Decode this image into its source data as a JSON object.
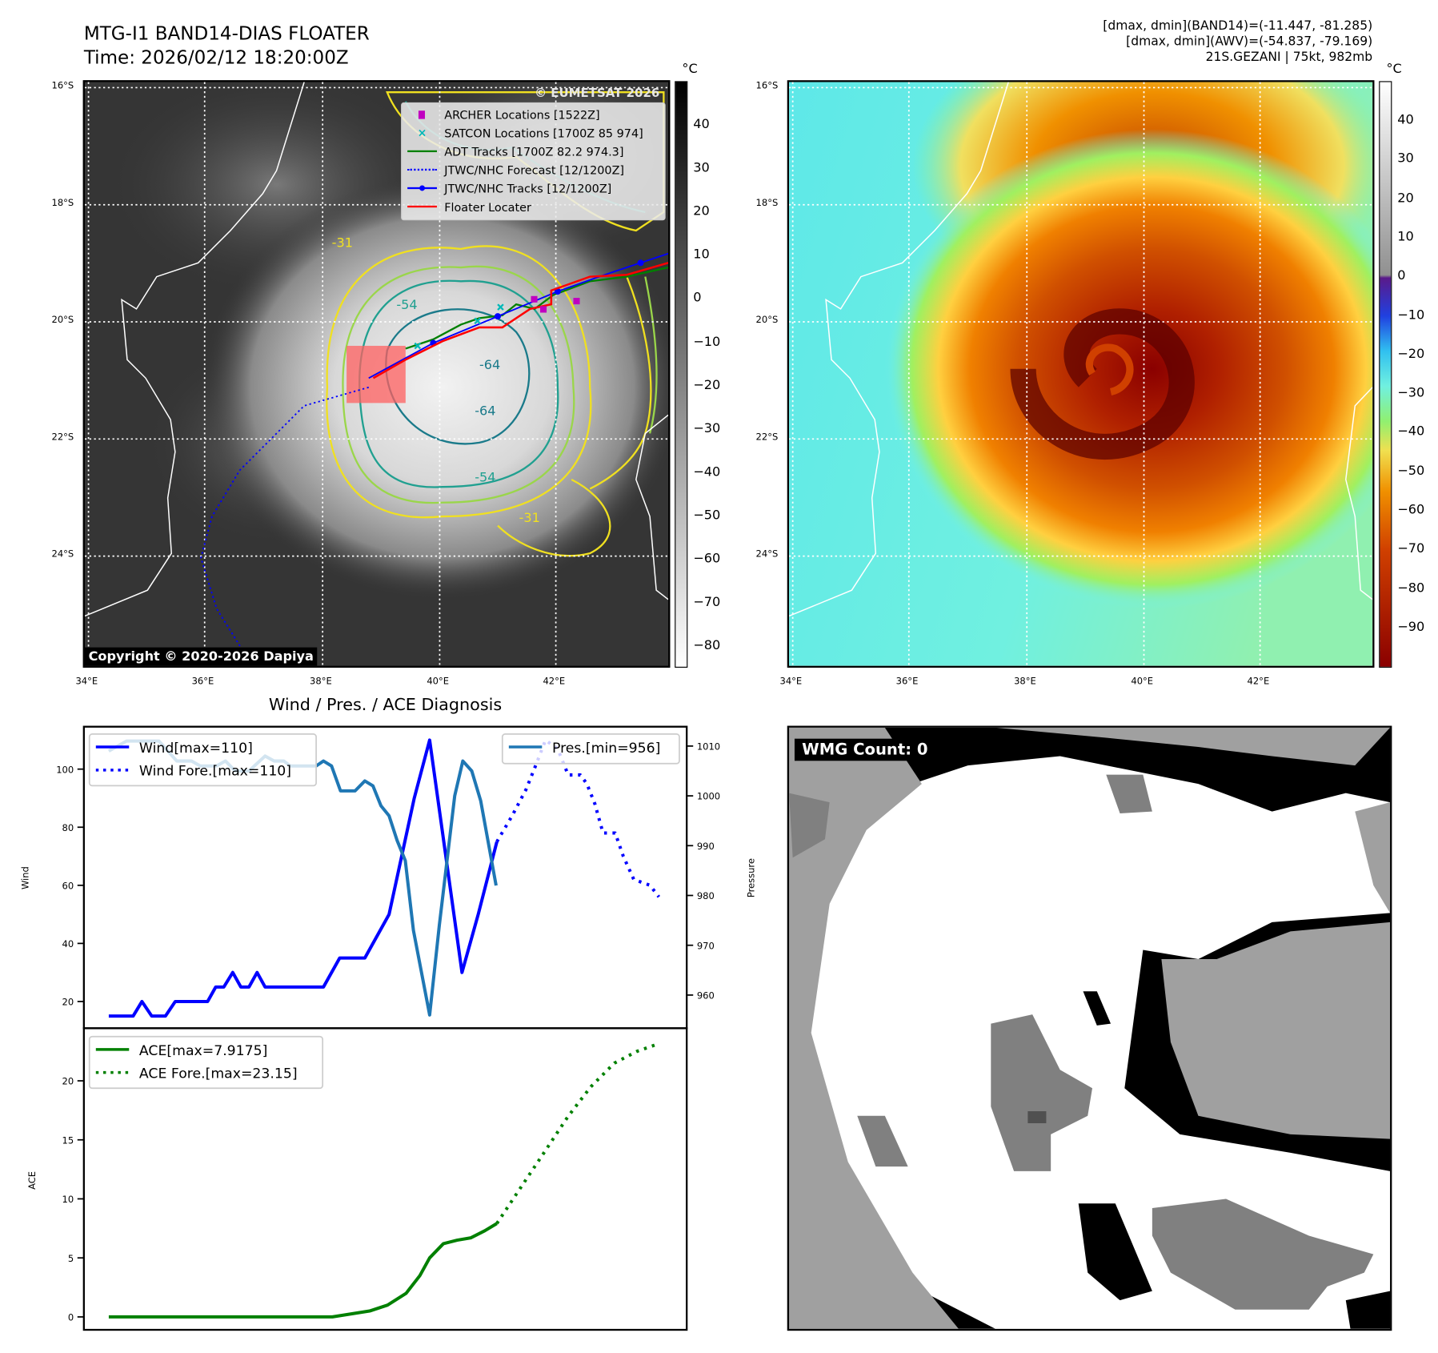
{
  "header": {
    "title": "MTG-I1 BAND14-DIAS FLOATER",
    "time": "Time: 2026/02/12 18:20:00Z",
    "stats_band14": "[dmax, dmin](BAND14)=(-11.447, -81.285)",
    "stats_awv": "[dmax, dmin](AWV)=(-54.837, -79.169)",
    "storm": "21S.GEZANI | 75kt, 982mb"
  },
  "map_left": {
    "lat_ticks": [
      "16°S",
      "18°S",
      "20°S",
      "22°S",
      "24°S"
    ],
    "lon_ticks": [
      "34°E",
      "36°E",
      "38°E",
      "40°E",
      "42°E"
    ],
    "watermark": "© EUMETSAT 2026",
    "copyright": "Copyright © 2020-2026 Dapiya",
    "contour_labels": [
      "-31",
      "-54",
      "-64",
      "-64",
      "-54",
      "-31"
    ],
    "legend": [
      {
        "label": "ARCHER Locations [1522Z]",
        "color": "#c000c0"
      },
      {
        "label": "SATCON Locations [1700Z 85 974]",
        "color": "#00b8b8"
      },
      {
        "label": "ADT Tracks [1700Z 82.2 974.3]",
        "color": "#008000"
      },
      {
        "label": "JTWC/NHC Forecast [12/1200Z]",
        "color": "#0000ff"
      },
      {
        "label": "JTWC/NHC Tracks [12/1200Z]",
        "color": "#0000ff"
      },
      {
        "label": "Floater Locater",
        "color": "#ff0000"
      }
    ],
    "colorbar_unit": "°C",
    "colorbar_ticks": [
      "40",
      "30",
      "20",
      "10",
      "0",
      "−10",
      "−20",
      "−30",
      "−40",
      "−50",
      "−60",
      "−70",
      "−80"
    ]
  },
  "map_right": {
    "lat_ticks": [
      "16°S",
      "18°S",
      "20°S",
      "22°S",
      "24°S"
    ],
    "lon_ticks": [
      "34°E",
      "36°E",
      "38°E",
      "40°E",
      "42°E"
    ],
    "colorbar_unit": "°C",
    "colorbar_ticks": [
      "40",
      "30",
      "20",
      "10",
      "0",
      "−10",
      "−20",
      "−30",
      "−40",
      "−50",
      "−60",
      "−70",
      "−80",
      "−90"
    ]
  },
  "wmg": {
    "label": "WMG Count: 0"
  },
  "chart_data": [
    {
      "type": "line",
      "title": "Wind / Pres. / ACE Diagnosis",
      "ylabel": "Wind",
      "ylabel_right": "Pressure",
      "ylim": [
        10,
        115
      ],
      "ylim_right": [
        953,
        1015
      ],
      "yticks": [
        "20",
        "40",
        "60",
        "80",
        "100"
      ],
      "yticks_right": [
        "960",
        "970",
        "980",
        "990",
        "1000",
        "1010"
      ],
      "series": [
        {
          "name": "Wind[max=110]",
          "color": "#0000ff",
          "style": "solid",
          "axis": "left",
          "x": [
            0,
            3,
            4.1,
            5.3,
            7,
            8.2,
            12.2,
            13.2,
            14.2,
            15.3,
            16.3,
            17.3,
            18.3,
            19.3,
            26.5,
            28.5,
            31.6,
            34.6,
            37.7,
            39.6,
            43.6,
            45.6,
            47.9
          ],
          "y": [
            15,
            15,
            20,
            15,
            15,
            20,
            20,
            25,
            25,
            30,
            25,
            25,
            30,
            25,
            25,
            35,
            35,
            50,
            90,
            110,
            30,
            50,
            75
          ]
        },
        {
          "name": "Wind Fore.[max=110]",
          "color": "#0000ff",
          "style": "dotted",
          "axis": "left",
          "x": [
            47.9,
            49.8,
            51.5,
            52.8,
            53.9,
            55.4,
            56.7,
            58.2,
            59,
            60,
            61,
            62.5,
            63.5,
            64.8,
            66.8,
            67.9
          ],
          "y": [
            75,
            84,
            93,
            102,
            110,
            107,
            98,
            98,
            95,
            88,
            78,
            78,
            70,
            62,
            60,
            56
          ]
        },
        {
          "name": "Pres.[min=956]",
          "color": "#1f77b4",
          "style": "solid",
          "axis": "right",
          "x": [
            0,
            2.2,
            6.2,
            8.4,
            10.2,
            11.3,
            13.3,
            14.4,
            15.6,
            17.3,
            19.3,
            20.4,
            21.6,
            22.4,
            25.6,
            26.5,
            27.5,
            28.6,
            30.4,
            31.6,
            32.6,
            33.6,
            34.6,
            35.6,
            36.6,
            37.6,
            39.6,
            40.8,
            42.7,
            43.7,
            44.8,
            45.9,
            47.8
          ],
          "y": [
            1009,
            1011,
            1011,
            1007,
            1007,
            1006,
            1006,
            1007,
            1005,
            1005,
            1008,
            1007,
            1007,
            1006,
            1006,
            1007,
            1006,
            1001,
            1001,
            1003,
            1002,
            998,
            996,
            991,
            987,
            973,
            956,
            974,
            1000,
            1007,
            1005,
            999,
            982
          ]
        }
      ],
      "legend": [
        "Wind[max=110]",
        "Wind Fore.[max=110]",
        "Pres.[min=956]"
      ]
    },
    {
      "type": "line",
      "ylabel": "ACE",
      "ylim": [
        -1,
        24.5
      ],
      "yticks": [
        "0",
        "5",
        "10",
        "15",
        "20"
      ],
      "series": [
        {
          "name": "ACE[max=7.9175]",
          "color": "#008000",
          "style": "solid",
          "x": [
            0,
            27.6,
            32.2,
            34.4,
            36.7,
            38.4,
            39.6,
            41.3,
            43,
            44.7,
            46.4,
            47.9
          ],
          "y": [
            0,
            0,
            0.5,
            1,
            2,
            3.5,
            5,
            6.2,
            6.5,
            6.7,
            7.3,
            7.9175
          ]
        },
        {
          "name": "ACE Fore.[max=23.15]",
          "color": "#008000",
          "style": "dotted",
          "x": [
            47.9,
            50.4,
            53.8,
            56.7,
            59.5,
            62.4,
            65.2,
            67.9
          ],
          "y": [
            7.9175,
            10.5,
            14,
            17,
            19.5,
            21.5,
            22.5,
            23.15
          ]
        }
      ],
      "legend": [
        "ACE[max=7.9175]",
        "ACE Fore.[max=23.15]"
      ]
    }
  ]
}
